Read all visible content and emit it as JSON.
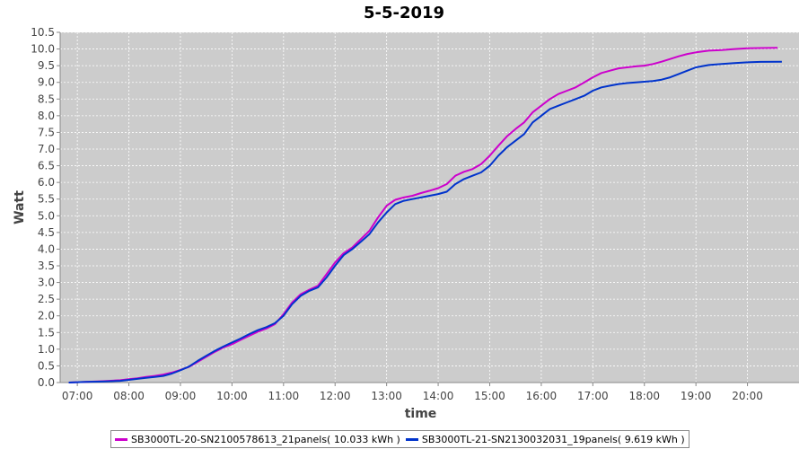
{
  "chart_data": {
    "type": "line",
    "title": "5-5-2019",
    "xlabel": "time",
    "ylabel": "Watt",
    "xlim": [
      "06:40",
      "21:00"
    ],
    "ylim": [
      0,
      10.5
    ],
    "x_ticks": [
      "07:00",
      "08:00",
      "09:00",
      "10:00",
      "11:00",
      "12:00",
      "13:00",
      "14:00",
      "15:00",
      "16:00",
      "17:00",
      "18:00",
      "19:00",
      "20:00"
    ],
    "y_ticks": [
      "0.0",
      "0.5",
      "1.0",
      "1.5",
      "2.0",
      "2.5",
      "3.0",
      "3.5",
      "4.0",
      "4.5",
      "5.0",
      "5.5",
      "6.0",
      "6.5",
      "7.0",
      "7.5",
      "8.0",
      "8.5",
      "9.0",
      "9.5",
      "10.0",
      "10.5"
    ],
    "grid": true,
    "legend_position": "bottom",
    "background": "#cccccc",
    "series": [
      {
        "name": "SB3000TL-20-SN2100578613_21panels( 10.033 kWh )",
        "color": "#cc00cc",
        "points": [
          [
            "06:50",
            0.0
          ],
          [
            "07:10",
            0.02
          ],
          [
            "07:30",
            0.04
          ],
          [
            "07:50",
            0.07
          ],
          [
            "08:00",
            0.1
          ],
          [
            "08:10",
            0.13
          ],
          [
            "08:20",
            0.17
          ],
          [
            "08:30",
            0.2
          ],
          [
            "08:40",
            0.24
          ],
          [
            "08:50",
            0.3
          ],
          [
            "09:00",
            0.38
          ],
          [
            "09:10",
            0.47
          ],
          [
            "09:20",
            0.62
          ],
          [
            "09:30",
            0.77
          ],
          [
            "09:40",
            0.92
          ],
          [
            "09:50",
            1.05
          ],
          [
            "10:00",
            1.15
          ],
          [
            "10:10",
            1.28
          ],
          [
            "10:20",
            1.4
          ],
          [
            "10:30",
            1.52
          ],
          [
            "10:40",
            1.62
          ],
          [
            "10:50",
            1.75
          ],
          [
            "11:00",
            2.05
          ],
          [
            "11:10",
            2.4
          ],
          [
            "11:20",
            2.65
          ],
          [
            "11:30",
            2.78
          ],
          [
            "11:40",
            2.9
          ],
          [
            "11:50",
            3.25
          ],
          [
            "12:00",
            3.6
          ],
          [
            "12:10",
            3.88
          ],
          [
            "12:20",
            4.05
          ],
          [
            "12:30",
            4.3
          ],
          [
            "12:40",
            4.55
          ],
          [
            "12:50",
            4.95
          ],
          [
            "13:00",
            5.3
          ],
          [
            "13:10",
            5.48
          ],
          [
            "13:20",
            5.55
          ],
          [
            "13:30",
            5.6
          ],
          [
            "13:40",
            5.68
          ],
          [
            "13:50",
            5.75
          ],
          [
            "14:00",
            5.83
          ],
          [
            "14:10",
            5.95
          ],
          [
            "14:20",
            6.2
          ],
          [
            "14:30",
            6.32
          ],
          [
            "14:40",
            6.4
          ],
          [
            "14:50",
            6.55
          ],
          [
            "15:00",
            6.8
          ],
          [
            "15:10",
            7.1
          ],
          [
            "15:20",
            7.38
          ],
          [
            "15:30",
            7.6
          ],
          [
            "15:40",
            7.8
          ],
          [
            "15:50",
            8.1
          ],
          [
            "16:00",
            8.3
          ],
          [
            "16:10",
            8.5
          ],
          [
            "16:20",
            8.65
          ],
          [
            "16:30",
            8.75
          ],
          [
            "16:40",
            8.85
          ],
          [
            "16:50",
            9.0
          ],
          [
            "17:00",
            9.15
          ],
          [
            "17:10",
            9.28
          ],
          [
            "17:20",
            9.35
          ],
          [
            "17:30",
            9.42
          ],
          [
            "17:40",
            9.45
          ],
          [
            "17:50",
            9.48
          ],
          [
            "18:00",
            9.5
          ],
          [
            "18:10",
            9.55
          ],
          [
            "18:20",
            9.62
          ],
          [
            "18:30",
            9.7
          ],
          [
            "18:40",
            9.78
          ],
          [
            "18:50",
            9.85
          ],
          [
            "19:00",
            9.9
          ],
          [
            "19:15",
            9.95
          ],
          [
            "19:30",
            9.97
          ],
          [
            "19:45",
            10.0
          ],
          [
            "20:00",
            10.02
          ],
          [
            "20:15",
            10.03
          ],
          [
            "20:35",
            10.033
          ]
        ]
      },
      {
        "name": "SB3000TL-21-SN2130032031_19panels( 9.619 kWh )",
        "color": "#0033cc",
        "points": [
          [
            "06:50",
            0.0
          ],
          [
            "07:10",
            0.02
          ],
          [
            "07:30",
            0.03
          ],
          [
            "07:50",
            0.05
          ],
          [
            "08:00",
            0.08
          ],
          [
            "08:10",
            0.11
          ],
          [
            "08:20",
            0.14
          ],
          [
            "08:30",
            0.17
          ],
          [
            "08:40",
            0.2
          ],
          [
            "08:50",
            0.27
          ],
          [
            "09:00",
            0.37
          ],
          [
            "09:10",
            0.48
          ],
          [
            "09:20",
            0.65
          ],
          [
            "09:30",
            0.8
          ],
          [
            "09:40",
            0.95
          ],
          [
            "09:50",
            1.08
          ],
          [
            "10:00",
            1.2
          ],
          [
            "10:10",
            1.32
          ],
          [
            "10:20",
            1.45
          ],
          [
            "10:30",
            1.57
          ],
          [
            "10:40",
            1.66
          ],
          [
            "10:50",
            1.78
          ],
          [
            "11:00",
            2.0
          ],
          [
            "11:10",
            2.35
          ],
          [
            "11:20",
            2.6
          ],
          [
            "11:30",
            2.75
          ],
          [
            "11:40",
            2.85
          ],
          [
            "11:50",
            3.15
          ],
          [
            "12:00",
            3.5
          ],
          [
            "12:10",
            3.82
          ],
          [
            "12:20",
            4.0
          ],
          [
            "12:30",
            4.22
          ],
          [
            "12:40",
            4.45
          ],
          [
            "12:50",
            4.8
          ],
          [
            "13:00",
            5.1
          ],
          [
            "13:10",
            5.35
          ],
          [
            "13:20",
            5.45
          ],
          [
            "13:30",
            5.5
          ],
          [
            "13:40",
            5.55
          ],
          [
            "13:50",
            5.6
          ],
          [
            "14:00",
            5.65
          ],
          [
            "14:10",
            5.72
          ],
          [
            "14:20",
            5.95
          ],
          [
            "14:30",
            6.1
          ],
          [
            "14:40",
            6.2
          ],
          [
            "14:50",
            6.3
          ],
          [
            "15:00",
            6.5
          ],
          [
            "15:10",
            6.8
          ],
          [
            "15:20",
            7.05
          ],
          [
            "15:30",
            7.25
          ],
          [
            "15:40",
            7.45
          ],
          [
            "15:50",
            7.8
          ],
          [
            "16:00",
            8.0
          ],
          [
            "16:10",
            8.2
          ],
          [
            "16:20",
            8.3
          ],
          [
            "16:30",
            8.4
          ],
          [
            "16:40",
            8.5
          ],
          [
            "16:50",
            8.6
          ],
          [
            "17:00",
            8.75
          ],
          [
            "17:10",
            8.85
          ],
          [
            "17:20",
            8.9
          ],
          [
            "17:30",
            8.95
          ],
          [
            "17:40",
            8.98
          ],
          [
            "17:50",
            9.0
          ],
          [
            "18:00",
            9.02
          ],
          [
            "18:10",
            9.04
          ],
          [
            "18:20",
            9.08
          ],
          [
            "18:30",
            9.15
          ],
          [
            "18:40",
            9.25
          ],
          [
            "18:50",
            9.35
          ],
          [
            "19:00",
            9.45
          ],
          [
            "19:15",
            9.52
          ],
          [
            "19:30",
            9.55
          ],
          [
            "19:45",
            9.58
          ],
          [
            "20:00",
            9.6
          ],
          [
            "20:15",
            9.615
          ],
          [
            "20:40",
            9.619
          ]
        ]
      }
    ]
  }
}
